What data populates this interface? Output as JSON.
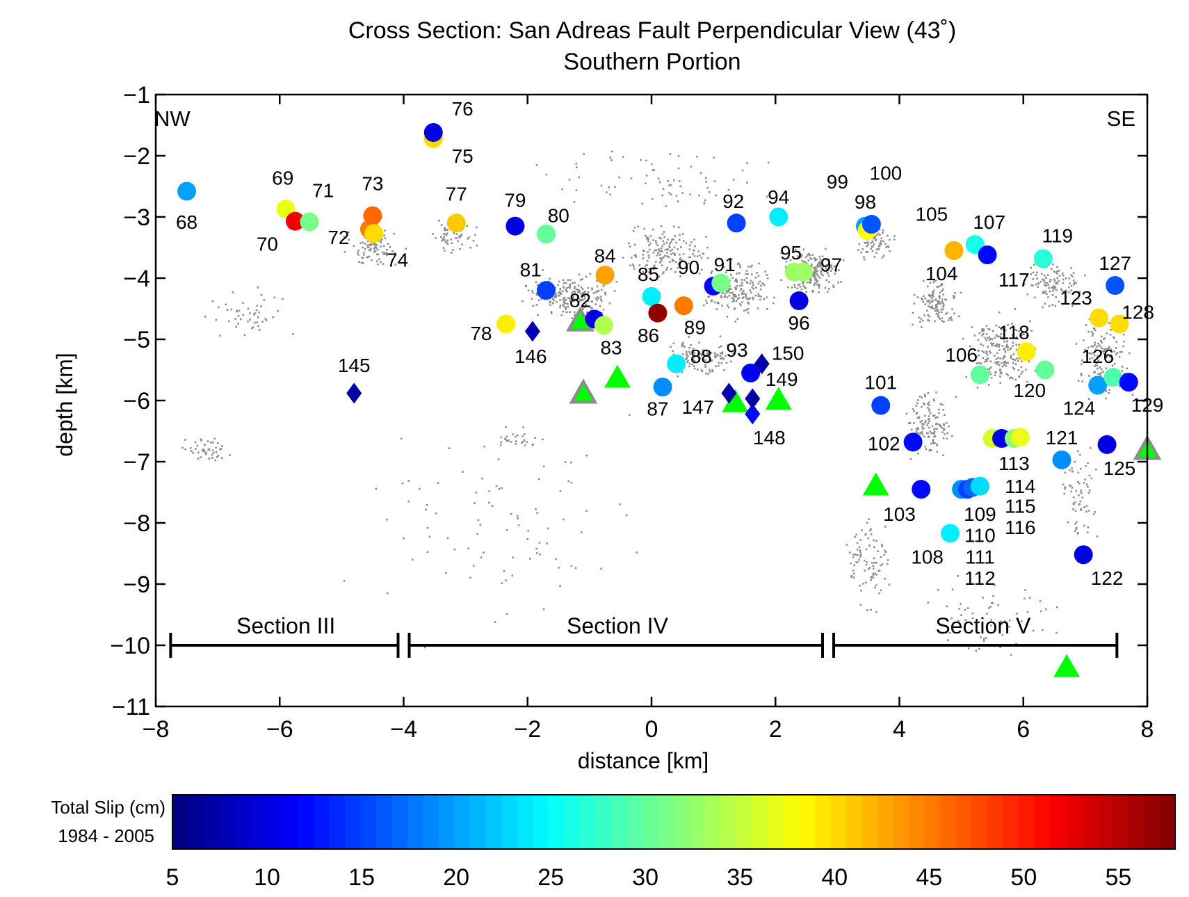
{
  "chart_data": {
    "type": "scatter",
    "title": "Cross Section:  San Adreas Fault Perpendicular View (43˚)",
    "subtitle": "Southern Portion",
    "xlabel": "distance [km]",
    "ylabel": "depth [km]",
    "xlim": [
      -8,
      8
    ],
    "ylim": [
      -11,
      -1
    ],
    "xticks": [
      -8,
      -6,
      -4,
      -2,
      0,
      2,
      4,
      6,
      8
    ],
    "yticks": [
      -1,
      -2,
      -3,
      -4,
      -5,
      -6,
      -7,
      -8,
      -9,
      -10,
      -11
    ],
    "grid": false,
    "corner_labels": {
      "left": "NW",
      "right": "SE"
    },
    "colorbar": {
      "title_line1": "Total Slip (cm)",
      "title_line2": "1984 - 2005",
      "min": 5,
      "max": 58,
      "ticks": [
        5,
        10,
        15,
        20,
        25,
        30,
        35,
        40,
        45,
        50,
        55
      ],
      "colormap": "jet"
    },
    "sections": [
      {
        "label": "Section III",
        "x_start": -7.85,
        "x_end": -4.0,
        "y": -10.0,
        "label_x": -5.9
      },
      {
        "label": "Section IV",
        "x_start": -4.0,
        "x_end": 2.85,
        "y": -10.0,
        "label_x": -0.55
      },
      {
        "label": "Section V",
        "x_start": 2.85,
        "x_end": 7.6,
        "y": -10.0,
        "label_x": 5.35
      }
    ],
    "circles": [
      {
        "id": "68",
        "x": -7.5,
        "y": -2.58,
        "slip": 20,
        "lx": -7.5,
        "ly": -3.08
      },
      {
        "id": "69",
        "x": -5.9,
        "y": -2.87,
        "slip": 37,
        "lx": -5.95,
        "ly": -2.36
      },
      {
        "id": "70",
        "x": -5.75,
        "y": -3.07,
        "slip": 52,
        "lx": -6.2,
        "ly": -3.44
      },
      {
        "id": "71",
        "x": -5.52,
        "y": -3.08,
        "slip": 31,
        "lx": -5.3,
        "ly": -2.56
      },
      {
        "id": "72",
        "x": -4.55,
        "y": -3.2,
        "slip": 45,
        "lx": -5.05,
        "ly": -3.33
      },
      {
        "id": "73",
        "x": -4.5,
        "y": -2.98,
        "slip": 46,
        "lx": -4.5,
        "ly": -2.45
      },
      {
        "id": "74",
        "x": -4.48,
        "y": -3.27,
        "slip": 40,
        "lx": -4.1,
        "ly": -3.7
      },
      {
        "id": "75",
        "x": -3.52,
        "y": -1.72,
        "slip": 40,
        "lx": -3.05,
        "ly": -2.0
      },
      {
        "id": "76",
        "x": -3.52,
        "y": -1.62,
        "slip": 10,
        "lx": -3.05,
        "ly": -1.23
      },
      {
        "id": "77",
        "x": -3.15,
        "y": -3.1,
        "slip": 41,
        "lx": -3.15,
        "ly": -2.62
      },
      {
        "id": "78",
        "x": -2.35,
        "y": -4.75,
        "slip": 39,
        "lx": -2.75,
        "ly": -4.9
      },
      {
        "id": "79",
        "x": -2.2,
        "y": -3.15,
        "slip": 10,
        "lx": -2.2,
        "ly": -2.72
      },
      {
        "id": "80",
        "x": -1.7,
        "y": -3.28,
        "slip": 30,
        "lx": -1.5,
        "ly": -2.97
      },
      {
        "id": "81",
        "x": -1.7,
        "y": -4.2,
        "slip": 15,
        "lx": -1.95,
        "ly": -3.86
      },
      {
        "id": "82",
        "x": -0.92,
        "y": -4.67,
        "slip": 10,
        "lx": -1.15,
        "ly": -4.36
      },
      {
        "id": "83",
        "x": -0.77,
        "y": -4.77,
        "slip": 34,
        "lx": -0.65,
        "ly": -5.13
      },
      {
        "id": "84",
        "x": -0.75,
        "y": -3.95,
        "slip": 43,
        "lx": -0.75,
        "ly": -3.63
      },
      {
        "id": "85",
        "x": 0.0,
        "y": -4.3,
        "slip": 24,
        "lx": -0.05,
        "ly": -3.93
      },
      {
        "id": "86",
        "x": 0.1,
        "y": -4.57,
        "slip": 57,
        "lx": -0.05,
        "ly": -4.93
      },
      {
        "id": "87",
        "x": 0.18,
        "y": -5.78,
        "slip": 19,
        "lx": 0.1,
        "ly": -6.13
      },
      {
        "id": "88",
        "x": 0.4,
        "y": -5.4,
        "slip": 24,
        "lx": 0.8,
        "ly": -5.27
      },
      {
        "id": "89",
        "x": 0.52,
        "y": -4.45,
        "slip": 45,
        "lx": 0.7,
        "ly": -4.8
      },
      {
        "id": "90",
        "x": 1.0,
        "y": -4.13,
        "slip": 12,
        "lx": 0.6,
        "ly": -3.82
      },
      {
        "id": "91",
        "x": 1.12,
        "y": -4.08,
        "slip": 31,
        "lx": 1.18,
        "ly": -3.77
      },
      {
        "id": "92",
        "x": 1.37,
        "y": -3.1,
        "slip": 15,
        "lx": 1.32,
        "ly": -2.74
      },
      {
        "id": "93",
        "x": 1.6,
        "y": -5.55,
        "slip": 11,
        "lx": 1.38,
        "ly": -5.17
      },
      {
        "id": "94",
        "x": 2.05,
        "y": -3.0,
        "slip": 24,
        "lx": 2.05,
        "ly": -2.67
      },
      {
        "id": "95",
        "x": 2.3,
        "y": -3.9,
        "slip": 33,
        "lx": 2.25,
        "ly": -3.58
      },
      {
        "id": "96",
        "x": 2.38,
        "y": -4.37,
        "slip": 10,
        "lx": 2.38,
        "ly": -4.73
      },
      {
        "id": "97",
        "x": 2.45,
        "y": -3.9,
        "slip": 33,
        "lx": 2.9,
        "ly": -3.78
      },
      {
        "id": "98",
        "x": 3.45,
        "y": -3.15,
        "slip": 20,
        "lx": 3.45,
        "ly": -2.75
      },
      {
        "id": "99",
        "x": 3.48,
        "y": -3.22,
        "slip": 38,
        "lx": 3.0,
        "ly": -2.42
      },
      {
        "id": "100",
        "x": 3.55,
        "y": -3.12,
        "slip": 16,
        "lx": 3.78,
        "ly": -2.28
      },
      {
        "id": "101",
        "x": 3.7,
        "y": -6.08,
        "slip": 15,
        "lx": 3.7,
        "ly": -5.7
      },
      {
        "id": "102",
        "x": 4.22,
        "y": -6.68,
        "slip": 12,
        "lx": 3.75,
        "ly": -6.7
      },
      {
        "id": "103",
        "x": 4.35,
        "y": -7.45,
        "slip": 12,
        "lx": 4.0,
        "ly": -7.85
      },
      {
        "id": "104",
        "x": 4.88,
        "y": -3.55,
        "slip": 42,
        "lx": 4.68,
        "ly": -3.92
      },
      {
        "id": "105",
        "x": 4.88,
        "y": -3.55,
        "slip": 42,
        "lx": 4.52,
        "ly": -2.95
      },
      {
        "id": "106",
        "x": 5.3,
        "y": -5.58,
        "slip": 30,
        "lx": 5.0,
        "ly": -5.25
      },
      {
        "id": "107",
        "x": 5.22,
        "y": -3.45,
        "slip": 26,
        "lx": 5.45,
        "ly": -3.08
      },
      {
        "id": "108",
        "x": 4.82,
        "y": -8.17,
        "slip": 24,
        "lx": 4.45,
        "ly": -8.55
      },
      {
        "id": "109",
        "x": 5.0,
        "y": -7.45,
        "slip": 19,
        "lx": 5.3,
        "ly": -7.85
      },
      {
        "id": "110",
        "x": 5.1,
        "y": -7.45,
        "slip": 15,
        "lx": 5.3,
        "ly": -8.2
      },
      {
        "id": "111",
        "x": 5.18,
        "y": -7.42,
        "slip": 17,
        "lx": 5.3,
        "ly": -8.55
      },
      {
        "id": "112",
        "x": 5.3,
        "y": -7.4,
        "slip": 23,
        "lx": 5.3,
        "ly": -8.9
      },
      {
        "id": "113",
        "x": 5.5,
        "y": -6.62,
        "slip": 36,
        "lx": 5.85,
        "ly": -7.02
      },
      {
        "id": "114",
        "x": 5.65,
        "y": -6.62,
        "slip": 10,
        "lx": 5.95,
        "ly": -7.4
      },
      {
        "id": "115",
        "x": 5.85,
        "y": -6.62,
        "slip": 32,
        "lx": 5.95,
        "ly": -7.72
      },
      {
        "id": "116",
        "x": 5.95,
        "y": -6.6,
        "slip": 37,
        "lx": 5.95,
        "ly": -8.07
      },
      {
        "id": "117",
        "x": 5.42,
        "y": -3.62,
        "slip": 12,
        "lx": 5.85,
        "ly": -4.02
      },
      {
        "id": "118",
        "x": 6.05,
        "y": -5.2,
        "slip": 39,
        "lx": 5.85,
        "ly": -4.88
      },
      {
        "id": "119",
        "x": 6.32,
        "y": -3.68,
        "slip": 27,
        "lx": 6.55,
        "ly": -3.3
      },
      {
        "id": "120",
        "x": 6.35,
        "y": -5.5,
        "slip": 30,
        "lx": 6.1,
        "ly": -5.83
      },
      {
        "id": "121",
        "x": 6.62,
        "y": -6.97,
        "slip": 19,
        "lx": 6.62,
        "ly": -6.6
      },
      {
        "id": "122",
        "x": 6.97,
        "y": -8.52,
        "slip": 10,
        "lx": 7.35,
        "ly": -8.9
      },
      {
        "id": "123",
        "x": 7.22,
        "y": -4.65,
        "slip": 40,
        "lx": 6.85,
        "ly": -4.32
      },
      {
        "id": "124",
        "x": 7.2,
        "y": -5.75,
        "slip": 20,
        "lx": 6.9,
        "ly": -6.12
      },
      {
        "id": "125",
        "x": 7.35,
        "y": -6.72,
        "slip": 10,
        "lx": 7.55,
        "ly": -7.1
      },
      {
        "id": "126",
        "x": 7.45,
        "y": -5.62,
        "slip": 29,
        "lx": 7.2,
        "ly": -5.27
      },
      {
        "id": "127",
        "x": 7.48,
        "y": -4.12,
        "slip": 16,
        "lx": 7.48,
        "ly": -3.75
      },
      {
        "id": "128",
        "x": 7.55,
        "y": -4.75,
        "slip": 40,
        "lx": 7.85,
        "ly": -4.55
      },
      {
        "id": "129",
        "x": 7.7,
        "y": -5.7,
        "slip": 12,
        "lx": 8.0,
        "ly": -6.07
      }
    ],
    "diamonds": [
      {
        "id": "145",
        "x": -4.8,
        "y": -5.88,
        "slip": 7,
        "lx": -4.8,
        "ly": -5.42
      },
      {
        "id": "146",
        "x": -1.92,
        "y": -4.87,
        "slip": 8,
        "lx": -1.95,
        "ly": -5.27
      },
      {
        "id": "147",
        "x": 1.25,
        "y": -5.88,
        "slip": 7,
        "lx": 0.75,
        "ly": -6.1
      },
      {
        "id": "148",
        "x": 1.63,
        "y": -6.22,
        "slip": 12,
        "lx": 1.9,
        "ly": -6.6
      },
      {
        "id": "149",
        "x": 1.63,
        "y": -5.97,
        "slip": 7,
        "lx": 2.1,
        "ly": -5.65
      },
      {
        "id": "150",
        "x": 1.78,
        "y": -5.4,
        "slip": 7,
        "lx": 2.2,
        "ly": -5.22
      }
    ],
    "triangles_outlined": [
      {
        "x": -1.15,
        "y": -4.7
      },
      {
        "x": -1.1,
        "y": -5.88
      },
      {
        "x": 8.0,
        "y": -6.8
      }
    ],
    "triangles": [
      {
        "x": -0.55,
        "y": -5.62
      },
      {
        "x": 1.35,
        "y": -6.02
      },
      {
        "x": 2.05,
        "y": -5.98
      },
      {
        "x": 3.62,
        "y": -7.38
      },
      {
        "x": 6.7,
        "y": -10.35
      }
    ],
    "colors": {
      "background_seismicity": "#8c8c8c",
      "triangle_fill": "#00ff00",
      "triangle_outline": "#8c8c8c"
    }
  }
}
